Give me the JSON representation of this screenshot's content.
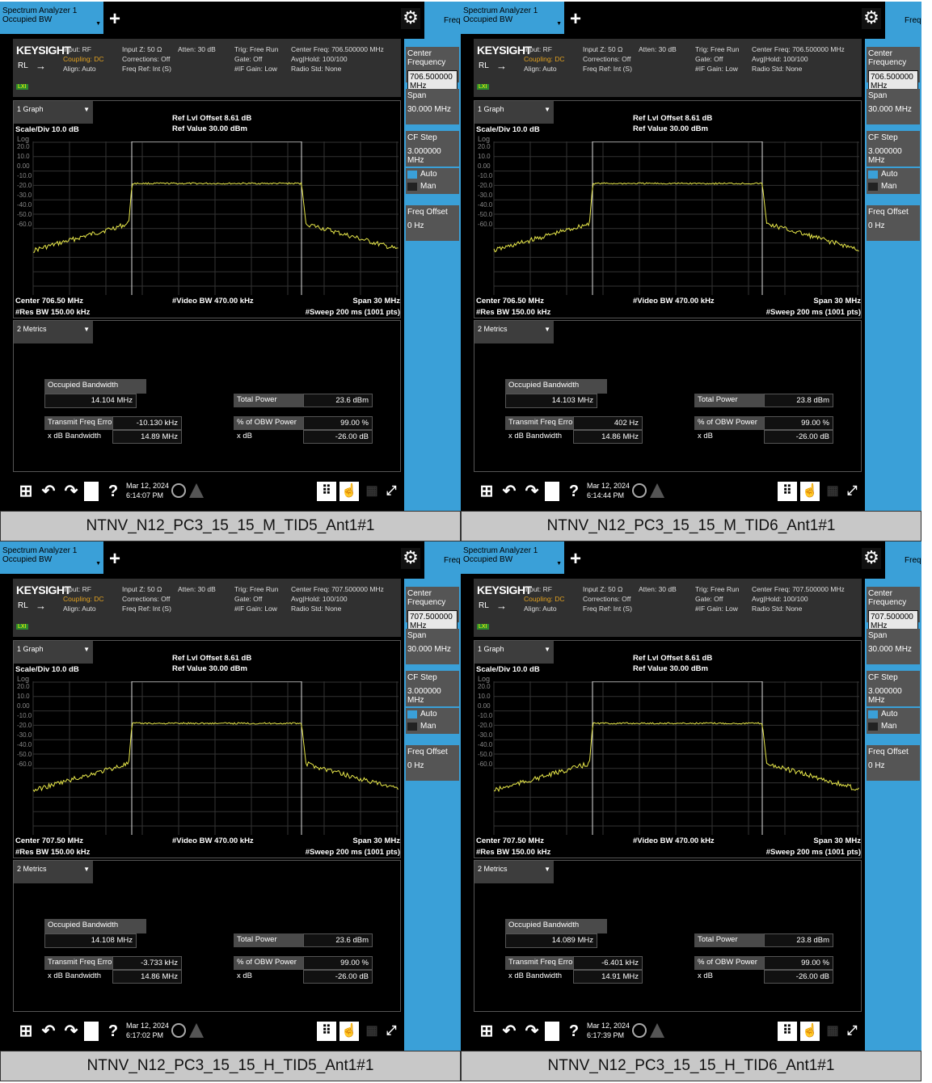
{
  "common": {
    "title_line1": "Spectrum Analyzer 1",
    "title_line2": "Occupied BW",
    "plus": "+",
    "freq_tab": "Frequency",
    "logo": "KEYSIGHT",
    "rl": "RL",
    "input": "Input: RF",
    "coupling": "Coupling: DC",
    "align": "Align: Auto",
    "input_z": "Input Z: 50 Ω",
    "corrections": "Corrections: Off",
    "freq_ref": "Freq Ref: Int (S)",
    "atten": "Atten: 30 dB",
    "trig": "Trig: Free Run",
    "gate": "Gate: Off",
    "if_gain": "#IF Gain: Low",
    "avg_hold": "Avg|Hold: 100/100",
    "radio_std": "Radio Std: None",
    "lxi": "LXI",
    "graph_sel": "1 Graph",
    "metrics_sel": "2 Metrics",
    "ref_offset": "Ref Lvl Offset 8.61 dB",
    "ref_value": "Ref Value 30.00 dBm",
    "scale_div": "Scale/Div 10.0 dB",
    "log": "Log",
    "y_ticks": [
      "20.0",
      "10.0",
      "0.00",
      "-10.0",
      "-20.0",
      "-30.0",
      "-40.0",
      "-50.0",
      "-60.0"
    ],
    "video_bw": "#Video BW 470.00 kHz",
    "span_label": "Span 30 MHz",
    "res_bw": "#Res BW 150.00 kHz",
    "sweep": "#Sweep 200 ms (1001 pts)",
    "obw_label": "Occupied Bandwidth",
    "tfe_label": "Transmit Freq Error",
    "xdb_bw_label": "x dB Bandwidth",
    "total_power_label": "Total Power",
    "obw_power_label": "% of OBW Power",
    "xdb_label": "x dB",
    "obw_power": "99.00 %",
    "xdb": "-26.00 dB",
    "rp_center_label": "Center Frequency",
    "rp_span_label": "Span",
    "rp_span_value": "30.000 MHz",
    "rp_cfstep_label": "CF Step",
    "rp_cfstep_value": "3.000000 MHz",
    "rp_auto": "Auto",
    "rp_man": "Man",
    "rp_freqoffset_label": "Freq Offset",
    "rp_freqoffset_value": "0 Hz",
    "date": "Mar 12, 2024",
    "help_icon": "?"
  },
  "panels": [
    {
      "center_freq_info": "Center Freq: 706.500000 MHz",
      "center_label": "Center 706.50 MHz",
      "rp_center_value": "706.500000 MHz",
      "obw": "14.104 MHz",
      "tfe": "-10.130 kHz",
      "xdb_bw": "14.89 MHz",
      "total_power": "23.6 dBm",
      "time": "6:14:07 PM",
      "caption": "NTNV_N12_PC3_15_15_M_TID5_Ant1#1"
    },
    {
      "center_freq_info": "Center Freq: 706.500000 MHz",
      "center_label": "Center 706.50 MHz",
      "rp_center_value": "706.500000 MHz",
      "obw": "14.103 MHz",
      "tfe": "402 Hz",
      "xdb_bw": "14.86 MHz",
      "total_power": "23.8 dBm",
      "time": "6:14:44 PM",
      "caption": "NTNV_N12_PC3_15_15_M_TID6_Ant1#1"
    },
    {
      "center_freq_info": "Center Freq: 707.500000 MHz",
      "center_label": "Center 707.50 MHz",
      "rp_center_value": "707.500000 MHz",
      "obw": "14.108 MHz",
      "tfe": "-3.733 kHz",
      "xdb_bw": "14.86 MHz",
      "total_power": "23.6 dBm",
      "time": "6:17:02 PM",
      "caption": "NTNV_N12_PC3_15_15_H_TID5_Ant1#1"
    },
    {
      "center_freq_info": "Center Freq: 707.500000 MHz",
      "center_label": "Center 707.50 MHz",
      "rp_center_value": "707.500000 MHz",
      "obw": "14.089 MHz",
      "tfe": "-6.401 kHz",
      "xdb_bw": "14.91 MHz",
      "total_power": "23.8 dBm",
      "time": "6:17:39 PM",
      "caption": "NTNV_N12_PC3_15_15_H_TID6_Ant1#1"
    }
  ],
  "colors": {
    "accent": "#3aa0d8",
    "trace": "#e8e84a",
    "panel_bg": "#000000"
  }
}
